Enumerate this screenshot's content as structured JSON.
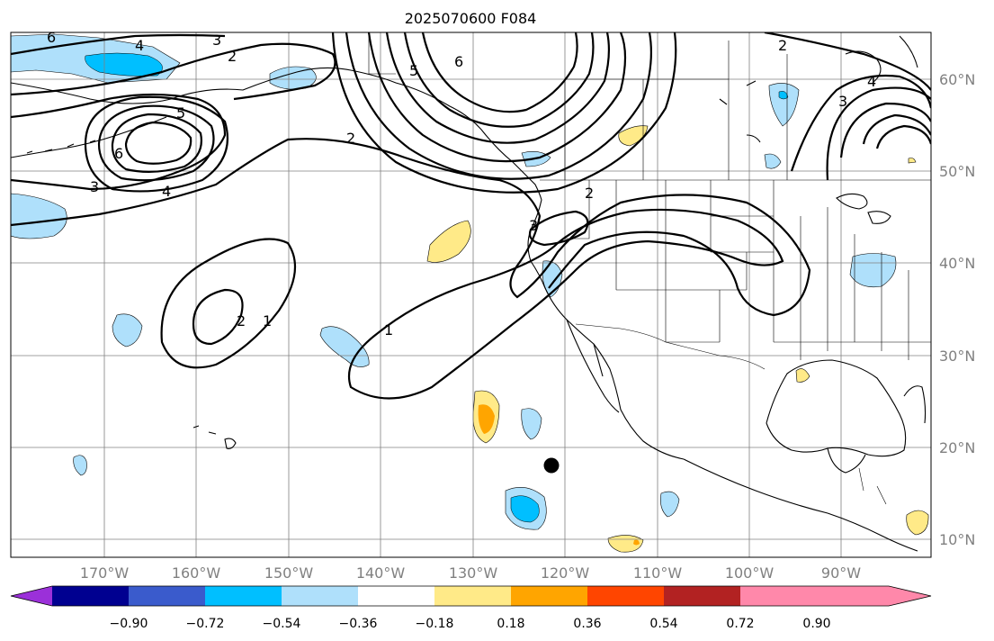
{
  "title": "2025070600 F084",
  "lat_labels": [
    "60°N",
    "50°N",
    "40°N",
    "30°N",
    "20°N",
    "10°N"
  ],
  "lon_labels": [
    "170°W",
    "160°W",
    "150°W",
    "140°W",
    "130°W",
    "120°W",
    "110°W",
    "100°W",
    "90°W"
  ],
  "colorbar": {
    "tick_labels": [
      "−0.90",
      "−0.72",
      "−0.54",
      "−0.36",
      "−0.18",
      "0.18",
      "0.36",
      "0.54",
      "0.72",
      "0.90"
    ],
    "colors": [
      "#9b30d9",
      "#000090",
      "#3a5bcc",
      "#00bfff",
      "#afe0fb",
      "#ffffff",
      "#ffea88",
      "#ffa500",
      "#ff4500",
      "#b22222",
      "#ff88aa"
    ]
  },
  "contour_labels": {
    "l1a": "1",
    "l1b": "1",
    "l2a": "2",
    "l2b": "2",
    "l2c": "2",
    "l2d": "2",
    "l2e": "2",
    "l3a": "3",
    "l3b": "3",
    "l3c": "3",
    "l3d": "3",
    "l4a": "4",
    "l4b": "4",
    "l4c": "4",
    "l5a": "5",
    "l5b": "5",
    "l6a": "6",
    "l6b": "6",
    "l6c": "6"
  },
  "colors": {
    "positive_fill": "#ffea88",
    "positive_core": "#ffa500",
    "negative_fill": "#afe0fb",
    "negative_core": "#00bfff"
  }
}
